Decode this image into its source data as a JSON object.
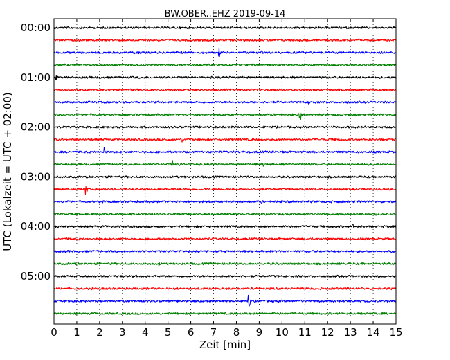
{
  "chart_data": {
    "type": "line",
    "title": "BW.OBER..EHZ 2019-09-14",
    "xlabel": "Zeit  [min]",
    "ylabel": "UTC (Lokalzeit = UTC + 02:00)",
    "xlim": [
      0,
      15
    ],
    "x_ticks": [
      "0",
      "1",
      "2",
      "3",
      "4",
      "5",
      "6",
      "7",
      "8",
      "9",
      "10",
      "11",
      "12",
      "13",
      "14",
      "15"
    ],
    "y_ticks": [
      "00:00",
      "01:00",
      "02:00",
      "03:00",
      "04:00",
      "05:00"
    ],
    "grid": "vertical-dotted",
    "line_interval_min": 15,
    "trace_colors": [
      "#000000",
      "#ff0000",
      "#0000ff",
      "#008000"
    ],
    "traces": [
      {
        "start": "00:00",
        "color": "#000000",
        "events": [
          [
            11.4,
            3
          ]
        ]
      },
      {
        "start": "00:15",
        "color": "#ff0000",
        "events": []
      },
      {
        "start": "00:30",
        "color": "#0000ff",
        "events": [
          [
            3.7,
            4
          ],
          [
            7.25,
            9
          ],
          [
            9.1,
            3
          ]
        ]
      },
      {
        "start": "00:45",
        "color": "#008000",
        "events": []
      },
      {
        "start": "01:00",
        "color": "#000000",
        "events": [
          [
            0.1,
            5
          ],
          [
            2.0,
            2
          ]
        ]
      },
      {
        "start": "01:15",
        "color": "#ff0000",
        "events": []
      },
      {
        "start": "01:30",
        "color": "#0000ff",
        "events": [
          [
            11.2,
            5
          ]
        ]
      },
      {
        "start": "01:45",
        "color": "#008000",
        "events": [
          [
            10.8,
            10
          ],
          [
            6.4,
            2
          ]
        ]
      },
      {
        "start": "02:00",
        "color": "#000000",
        "events": []
      },
      {
        "start": "02:15",
        "color": "#ff0000",
        "events": [
          [
            5.6,
            6
          ],
          [
            5.9,
            3
          ]
        ]
      },
      {
        "start": "02:30",
        "color": "#0000ff",
        "events": [
          [
            2.2,
            9
          ]
        ]
      },
      {
        "start": "02:45",
        "color": "#008000",
        "events": [
          [
            5.2,
            7
          ],
          [
            5.5,
            3
          ],
          [
            9.2,
            5
          ]
        ]
      },
      {
        "start": "03:00",
        "color": "#000000",
        "events": []
      },
      {
        "start": "03:15",
        "color": "#ff0000",
        "events": [
          [
            1.4,
            12
          ]
        ]
      },
      {
        "start": "03:30",
        "color": "#0000ff",
        "events": [
          [
            4.2,
            3
          ],
          [
            9.1,
            3
          ],
          [
            13.5,
            3
          ]
        ]
      },
      {
        "start": "03:45",
        "color": "#008000",
        "events": [
          [
            5.0,
            3
          ],
          [
            14.1,
            3
          ]
        ]
      },
      {
        "start": "04:00",
        "color": "#000000",
        "events": [
          [
            0.15,
            5
          ],
          [
            13.1,
            5
          ]
        ]
      },
      {
        "start": "04:15",
        "color": "#ff0000",
        "events": []
      },
      {
        "start": "04:30",
        "color": "#0000ff",
        "events": []
      },
      {
        "start": "04:45",
        "color": "#008000",
        "events": [
          [
            4.6,
            4
          ],
          [
            14.7,
            3
          ]
        ]
      },
      {
        "start": "05:00",
        "color": "#000000",
        "events": []
      },
      {
        "start": "05:15",
        "color": "#ff0000",
        "events": [
          [
            8.9,
            3
          ]
        ]
      },
      {
        "start": "05:30",
        "color": "#0000ff",
        "events": [
          [
            8.55,
            15
          ],
          [
            12.1,
            2
          ]
        ]
      },
      {
        "start": "05:45",
        "color": "#008000",
        "events": []
      }
    ]
  }
}
